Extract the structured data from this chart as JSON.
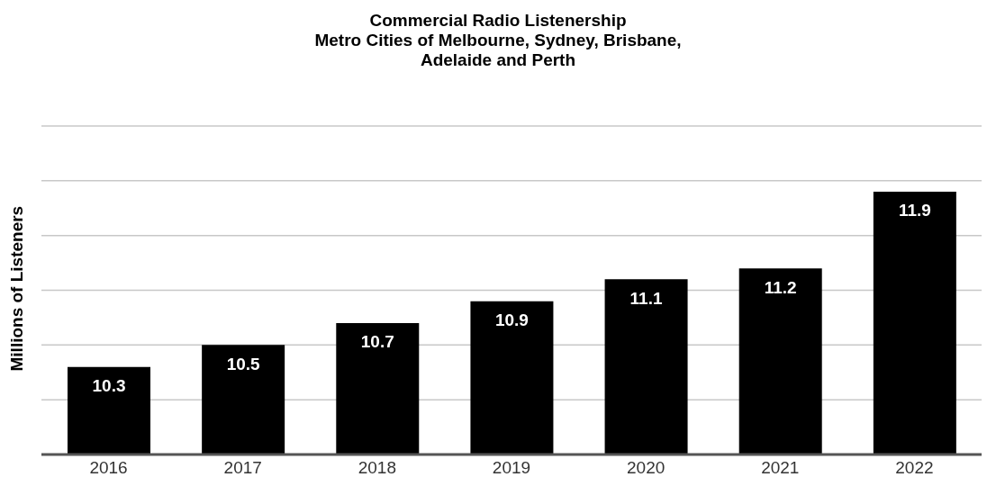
{
  "chart_data": {
    "type": "bar",
    "title": "Commercial Radio Listenership\nMetro Cities of Melbourne, Sydney, Brisbane,\nAdelaide and Perth",
    "ylabel": "Millions of Listeners",
    "categories": [
      "2016",
      "2017",
      "2018",
      "2019",
      "2020",
      "2021",
      "2022"
    ],
    "values": [
      10.3,
      10.5,
      10.7,
      10.9,
      11.1,
      11.2,
      11.9
    ],
    "color": "#000000",
    "ylim": [
      9.5,
      12.5
    ],
    "yticks": [
      {
        "value": 10,
        "label": null
      },
      {
        "value": 10.5,
        "label": null
      },
      {
        "value": 11,
        "label": null
      },
      {
        "value": 11.5,
        "label": null
      },
      {
        "value": 12,
        "label": null
      },
      {
        "value": 12.5,
        "label": null
      }
    ],
    "tick_labels": "x",
    "grid": "y",
    "data_labels": true,
    "legend": false
  }
}
